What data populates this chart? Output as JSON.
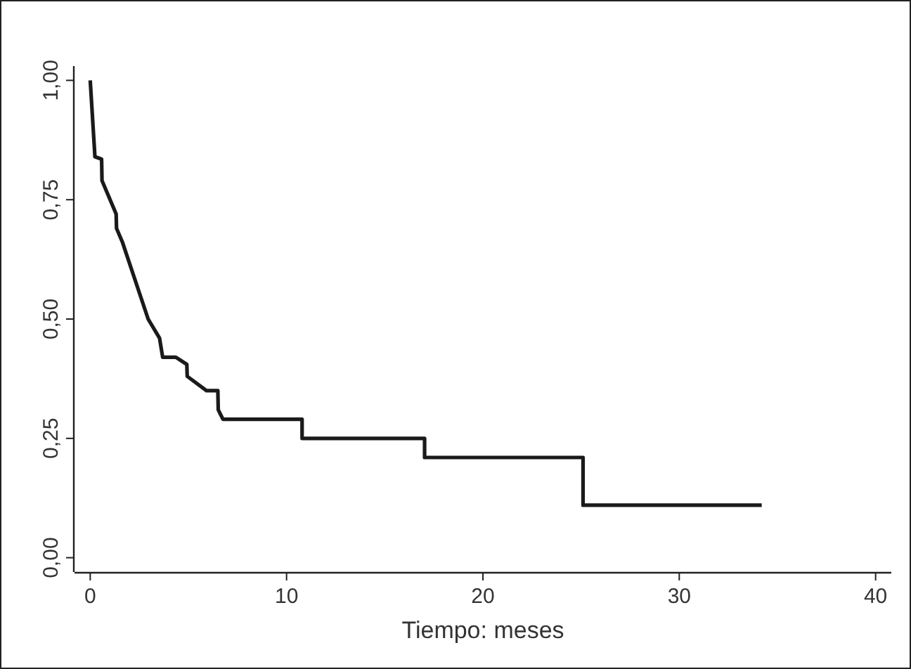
{
  "chart_data": {
    "type": "line",
    "xlabel": "Tiempo: meses",
    "x": [
      0,
      0.24,
      0.58,
      0.6,
      1.32,
      1.34,
      1.65,
      2.95,
      3.53,
      3.69,
      4.36,
      4.92,
      4.94,
      5.92,
      6.5,
      6.52,
      6.76,
      10.79,
      10.79,
      17.03,
      17.03,
      25.1,
      25.1,
      34.2
    ],
    "series": [
      {
        "color": "#1a1a1a",
        "values": [
          1.0,
          0.84,
          0.835,
          0.79,
          0.72,
          0.69,
          0.66,
          0.5,
          0.46,
          0.42,
          0.42,
          0.405,
          0.38,
          0.35,
          0.35,
          0.31,
          0.29,
          0.29,
          0.25,
          0.25,
          0.21,
          0.21,
          0.11,
          0.11
        ]
      }
    ],
    "xlim": [
      -0.8,
      40.8
    ],
    "xticks": [
      0,
      10,
      20,
      30,
      40
    ],
    "ylim": [
      -0.03,
      1.03
    ],
    "yticks": [
      {
        "value": 0,
        "label": "0,00"
      },
      {
        "value": 0.25,
        "label": "0,25"
      },
      {
        "value": 0.5,
        "label": "0,50"
      },
      {
        "value": 0.75,
        "label": "0,75"
      },
      {
        "value": 1,
        "label": "1,00"
      }
    ],
    "grid": false,
    "marker": "none",
    "line_style": "solid"
  }
}
